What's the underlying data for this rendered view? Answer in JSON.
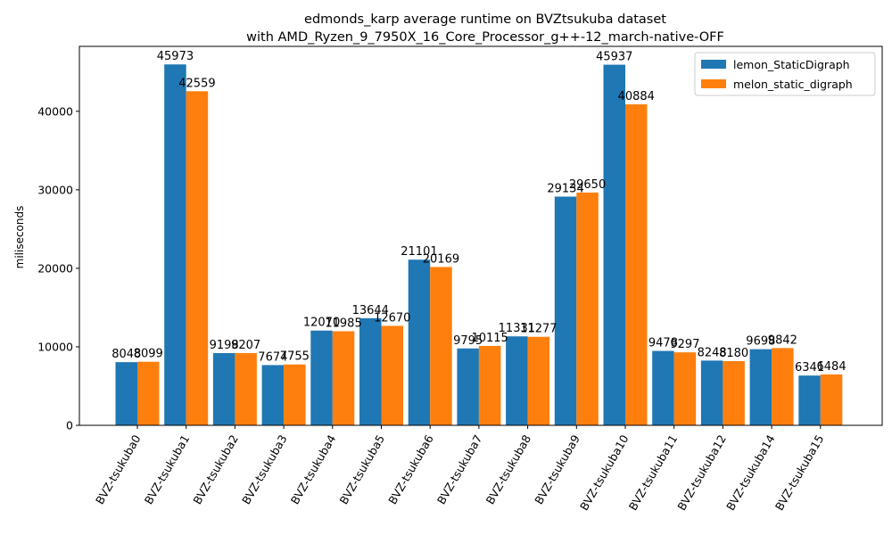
{
  "chart_data": {
    "type": "bar",
    "title_line1": "edmonds_karp average runtime on BVZtsukuba dataset",
    "title_line2": "with AMD_Ryzen_9_7950X_16_Core_Processor_g++-12_march-native-OFF",
    "xlabel": "",
    "ylabel": "miliseconds",
    "ylim": [
      0,
      48272
    ],
    "yticks": [
      0,
      10000,
      20000,
      30000,
      40000
    ],
    "grid": false,
    "legend_position": "top-right",
    "categories": [
      "BVZ-tsukuba0",
      "BVZ-tsukuba1",
      "BVZ-tsukuba2",
      "BVZ-tsukuba3",
      "BVZ-tsukuba4",
      "BVZ-tsukuba5",
      "BVZ-tsukuba6",
      "BVZ-tsukuba7",
      "BVZ-tsukuba8",
      "BVZ-tsukuba9",
      "BVZ-tsukuba10",
      "BVZ-tsukuba11",
      "BVZ-tsukuba12",
      "BVZ-tsukuba14",
      "BVZ-tsukuba15"
    ],
    "series": [
      {
        "name": "lemon_StaticDigraph",
        "color": "#1f77b4",
        "values": [
          8048,
          45973,
          9198,
          7674,
          12070,
          13644,
          21101,
          9795,
          11331,
          29134,
          45937,
          9478,
          8248,
          9698,
          6341
        ]
      },
      {
        "name": "melon_static_digraph",
        "color": "#ff7f0e",
        "values": [
          8099,
          42559,
          9207,
          7755,
          11985,
          12670,
          20169,
          10115,
          11277,
          29650,
          40884,
          9297,
          8180,
          9842,
          6484
        ]
      }
    ]
  }
}
